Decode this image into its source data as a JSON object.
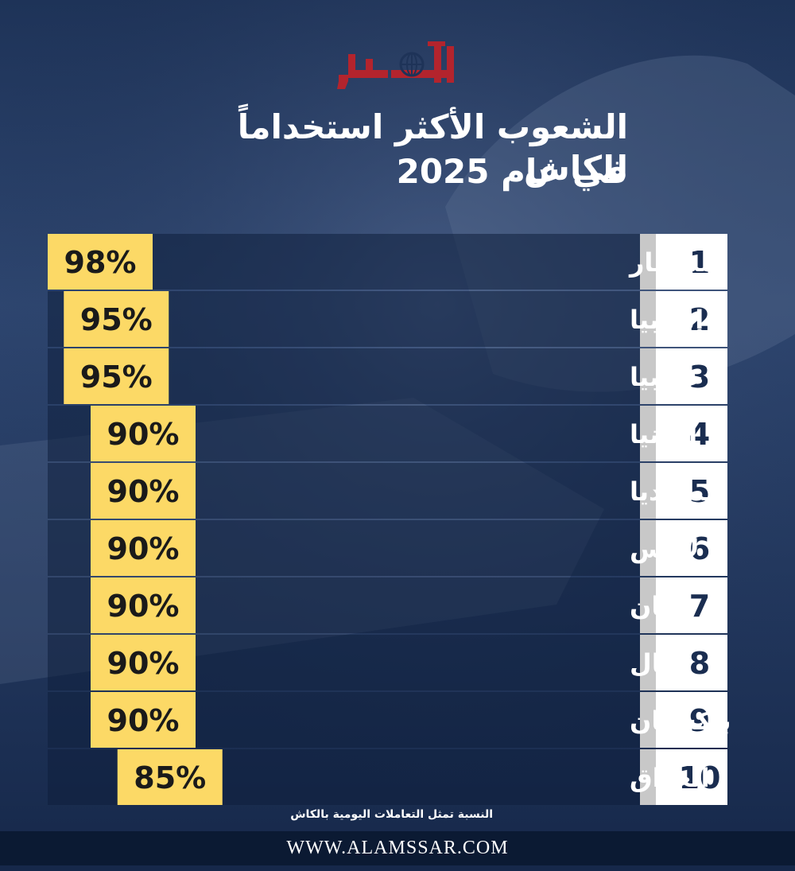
{
  "title_line1": "الشعوب الأكثر استخداماً للكاش",
  "title_line2": "في عام 2025",
  "logo_text": "الأمصار",
  "footnote": "النسبة تمثل  التعاملات اليومية بالكاش",
  "footer": "WWW.ALAMSSAR.COM",
  "colors": {
    "bar": "#fcd966",
    "rank_bg": "#ffffff",
    "rank_text": "#1a2d50",
    "label_text": "#ffffff",
    "logo": "#b3242d"
  },
  "chart_data": {
    "type": "bar",
    "categories": [
      "ميانمار",
      "إثيوبيا",
      "جامبيا",
      "ألبانيا",
      "كمبوديا",
      "لاوس",
      "لبنان",
      "نيبال",
      "باكستان",
      "العراق"
    ],
    "ranks": [
      "1",
      "2",
      "3",
      "4",
      "5",
      "6",
      "7",
      "8",
      "9",
      "10"
    ],
    "values": [
      98,
      95,
      95,
      90,
      90,
      90,
      90,
      90,
      90,
      85
    ],
    "value_labels": [
      "98%",
      "95%",
      "95%",
      "90%",
      "90%",
      "90%",
      "90%",
      "90%",
      "90%",
      "85%"
    ]
  }
}
